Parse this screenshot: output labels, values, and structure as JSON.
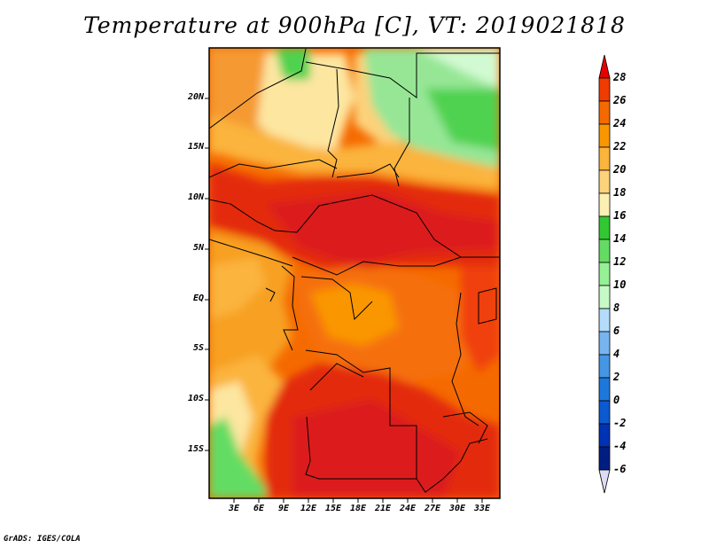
{
  "title": "Temperature at 900hPa [C], VT: 2019021818",
  "lat_labels": [
    "20N",
    "15N",
    "10N",
    "5N",
    "EQ",
    "5S",
    "10S",
    "15S"
  ],
  "lon_labels": [
    "3E",
    "6E",
    "9E",
    "12E",
    "15E",
    "18E",
    "21E",
    "24E",
    "27E",
    "30E",
    "33E"
  ],
  "colorbar": {
    "labels": [
      "28",
      "26",
      "24",
      "22",
      "20",
      "18",
      "16",
      "14",
      "12",
      "10",
      "8",
      "6",
      "4",
      "2",
      "0",
      "-2",
      "-4",
      "-6"
    ],
    "colors": [
      "#e60000",
      "#f03c00",
      "#f56a00",
      "#fa9600",
      "#fbb43c",
      "#fcd27a",
      "#fdf0b4",
      "#32c832",
      "#64dc64",
      "#96f096",
      "#c8fac8",
      "#b4dcfa",
      "#78b4f0",
      "#4696e6",
      "#1e78dc",
      "#0a5ad2",
      "#0032b4",
      "#001e82",
      "#000050"
    ]
  },
  "map_fields": {
    "variable": "Temperature at 900hPa",
    "units": "C",
    "valid_time": "2019021818",
    "lon_range": [
      0,
      34
    ],
    "lat_range": [
      -19,
      24
    ]
  },
  "credit": "GrADS: IGES/COLA"
}
